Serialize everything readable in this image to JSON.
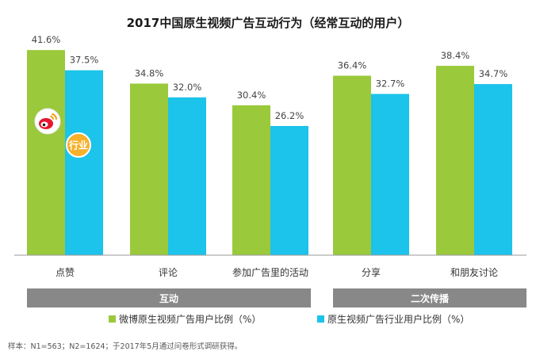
{
  "chart_data": {
    "type": "bar",
    "title": "2017中国原生视频广告互动行为（经常互动的用户）",
    "categories": [
      "点赞",
      "评论",
      "参加广告里的活动",
      "分享",
      "和朋友讨论"
    ],
    "series": [
      {
        "name": "微博原生视频广告用户比例（%）",
        "color": "#9ac93c",
        "values": [
          41.6,
          34.8,
          30.4,
          36.4,
          38.4
        ]
      },
      {
        "name": "原生视频广告行业用户比例（%）",
        "color": "#1cc3ea",
        "values": [
          37.5,
          32.0,
          26.2,
          32.7,
          34.7
        ]
      }
    ],
    "value_labels": [
      [
        "41.6%",
        "34.8%",
        "30.4%",
        "36.4%",
        "38.4%"
      ],
      [
        "37.5%",
        "32.0%",
        "26.2%",
        "32.7%",
        "34.7%"
      ]
    ],
    "groups": [
      {
        "label": "互动",
        "categories": [
          "点赞",
          "评论",
          "参加广告里的活动"
        ]
      },
      {
        "label": "二次传播",
        "categories": [
          "分享",
          "和朋友讨论"
        ]
      }
    ],
    "ylim": [
      0,
      45
    ],
    "grid": false,
    "legend_position": "bottom",
    "annotations": {
      "badge_industry": "行业"
    },
    "group_bar_color": "#888888"
  },
  "footnote": "样本：N1=563；N2=1624；于2017年5月通过问卷形式调研获得。"
}
